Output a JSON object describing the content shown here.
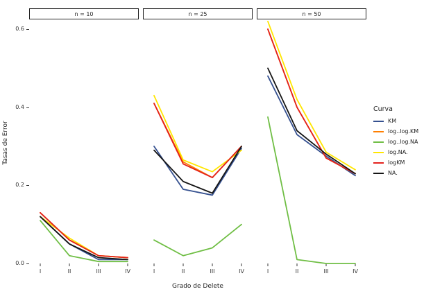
{
  "chart_data": {
    "type": "line",
    "title": "",
    "facets": [
      "n = 10",
      "n = 25",
      "n = 50"
    ],
    "x_categories": [
      "I",
      "II",
      "III",
      "IV"
    ],
    "xlabel": "Grado de Delete",
    "ylabel": "Tasas de Error",
    "ylim": [
      0,
      0.625
    ],
    "yticks": [
      0,
      0.2,
      0.4,
      0.6
    ],
    "ytick_labels": [
      "0.0",
      "0.2",
      "0.4",
      "0.6"
    ],
    "grid": false,
    "legend_title": "Curva",
    "legend_position": "right",
    "series": [
      {
        "name": "KM",
        "color": "#35508F",
        "values": [
          [
            0.12,
            0.05,
            0.01,
            0.01
          ],
          [
            0.3,
            0.19,
            0.175,
            0.295
          ],
          [
            0.48,
            0.33,
            0.275,
            0.225
          ]
        ]
      },
      {
        "name": "log..log.KM",
        "color": "#FF7F00",
        "values": [
          [
            0.13,
            0.06,
            0.02,
            0.015
          ],
          [
            0.41,
            0.26,
            0.22,
            0.3
          ],
          [
            0.6,
            0.4,
            0.27,
            0.23
          ]
        ]
      },
      {
        "name": "log..log.NA",
        "color": "#6FBE44",
        "values": [
          [
            0.11,
            0.02,
            0.005,
            0.005
          ],
          [
            0.06,
            0.02,
            0.04,
            0.1
          ],
          [
            0.375,
            0.01,
            0.0,
            0.0
          ]
        ]
      },
      {
        "name": "log.NA.",
        "color": "#FFE600",
        "values": [
          [
            0.12,
            0.065,
            0.02,
            0.015
          ],
          [
            0.43,
            0.265,
            0.235,
            0.29
          ],
          [
            0.62,
            0.42,
            0.285,
            0.24
          ]
        ]
      },
      {
        "name": "logKM",
        "color": "#E3211C",
        "values": [
          [
            0.13,
            0.06,
            0.02,
            0.015
          ],
          [
            0.41,
            0.255,
            0.22,
            0.3
          ],
          [
            0.6,
            0.4,
            0.27,
            0.23
          ]
        ]
      },
      {
        "name": "NA.",
        "color": "#151515",
        "values": [
          [
            0.12,
            0.05,
            0.015,
            0.01
          ],
          [
            0.29,
            0.21,
            0.18,
            0.3
          ],
          [
            0.5,
            0.34,
            0.28,
            0.23
          ]
        ]
      }
    ]
  }
}
